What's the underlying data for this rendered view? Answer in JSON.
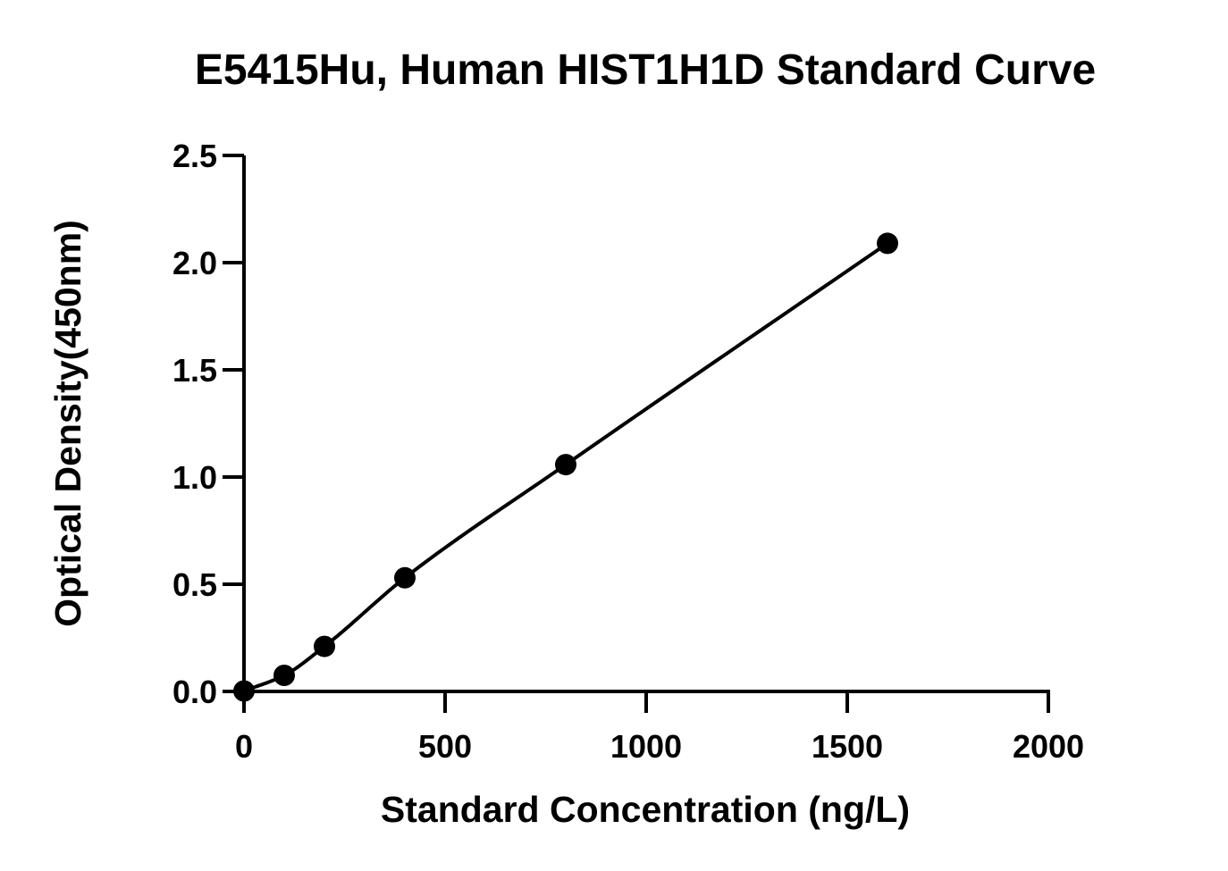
{
  "chart_data": {
    "type": "scatter",
    "title": "E5415Hu, Human HIST1H1D Standard Curve",
    "xlabel": "Standard Concentration (ng/L)",
    "ylabel": "Optical Density(450nm)",
    "xlim": [
      0,
      2000
    ],
    "ylim": [
      0,
      2.5
    ],
    "x_ticks": [
      "0",
      "500",
      "1000",
      "1500",
      "2000"
    ],
    "y_ticks": [
      "0.0",
      "0.5",
      "1.0",
      "1.5",
      "2.0",
      "2.5"
    ],
    "grid": false,
    "legend": "none",
    "series": [
      {
        "points": [
          {
            "x": 0,
            "y": 0.002
          },
          {
            "x": 100,
            "y": 0.075
          },
          {
            "x": 200,
            "y": 0.21
          },
          {
            "x": 400,
            "y": 0.53
          },
          {
            "x": 800,
            "y": 1.058
          },
          {
            "x": 1600,
            "y": 2.09
          }
        ],
        "fit_curve": true
      }
    ],
    "colors": {
      "marker": "#000000",
      "line": "#000000",
      "axis": "#000000"
    }
  }
}
